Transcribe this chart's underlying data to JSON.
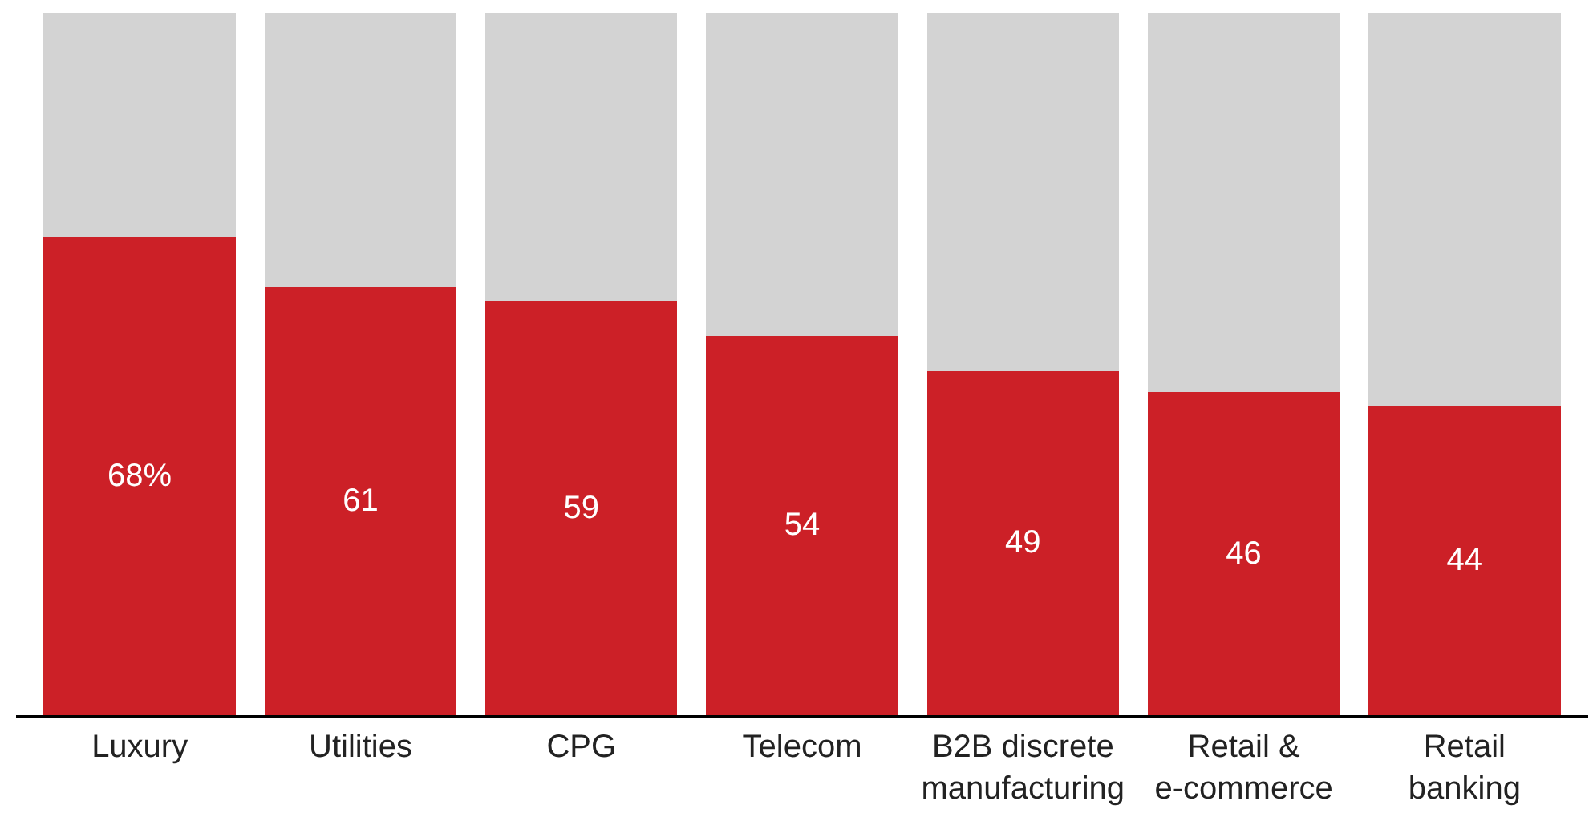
{
  "chart_data": {
    "type": "bar",
    "stacked": true,
    "categories": [
      "Luxury",
      "Utilities",
      "CPG",
      "Telecom",
      "B2B discrete\nmanufacturing",
      "Retail &\ne-commerce",
      "Retail\nbanking"
    ],
    "series": [
      {
        "color": "#cc2027",
        "values": [
          68,
          61,
          59,
          54,
          49,
          46,
          44
        ],
        "value_labels": [
          "68%",
          "61",
          "59",
          "54",
          "49",
          "46",
          "44"
        ]
      },
      {
        "color": "#d3d3d3",
        "values": [
          32,
          39,
          41,
          46,
          51,
          54,
          56
        ]
      }
    ],
    "ylim": [
      0,
      100
    ],
    "tick_labels": "x",
    "legend": false
  }
}
